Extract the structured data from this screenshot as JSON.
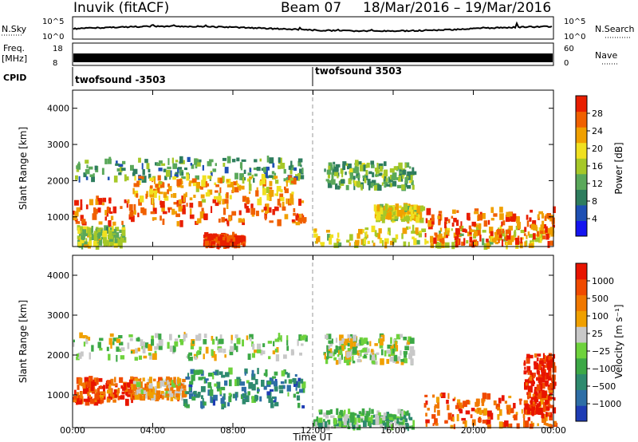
{
  "header": {
    "station": "Inuvik (fitACF)",
    "beam": "Beam 07",
    "date_range": "18/Mar/2016 – 19/Mar/2016"
  },
  "strips": {
    "nsky": {
      "label": "N.Sky",
      "ticks": [
        "10^5",
        "10^0"
      ]
    },
    "nsearch": {
      "label": "N.Search",
      "ticks": [
        "10^5",
        "10^0"
      ]
    },
    "freq": {
      "label_top": "Freq.",
      "label_bottom": "[MHz]",
      "ticks": [
        "18",
        "8"
      ]
    },
    "nave": {
      "label": "Nave",
      "ticks": [
        "60",
        "0"
      ]
    },
    "cpid": {
      "label": "CPID",
      "segments": [
        "twofsound -3503",
        "twofsound 3503"
      ]
    }
  },
  "x_axis": {
    "title": "Time UT",
    "ticks": [
      "00:00",
      "04:00",
      "08:00",
      "12:00",
      "16:00",
      "20:00",
      "00:00"
    ]
  },
  "chart_data": [
    {
      "type": "heatmap",
      "name": "power",
      "ylabel": "Slant Range [km]",
      "ylim": [
        180,
        4500
      ],
      "yticks": [
        "1000",
        "2000",
        "3000",
        "4000"
      ],
      "xlim": [
        0,
        24
      ],
      "colorbar": {
        "label": "Power [dB]",
        "ticks": [
          "4",
          "8",
          "12",
          "16",
          "20",
          "24",
          "28"
        ],
        "colors": [
          "#1414f0",
          "#1e50b4",
          "#2e7d5e",
          "#5aa85a",
          "#a6c828",
          "#f0e020",
          "#f0a000",
          "#f06000",
          "#e81e00"
        ]
      },
      "regions": [
        {
          "t0": 0.0,
          "t1": 11.6,
          "r0": 2000,
          "r1": 2600,
          "level": 0.35
        },
        {
          "t0": 0.0,
          "t1": 11.5,
          "r0": 800,
          "r1": 1500,
          "level": 0.85
        },
        {
          "t0": 0.2,
          "t1": 2.5,
          "r0": 180,
          "r1": 700,
          "level": 0.5
        },
        {
          "t0": 3.0,
          "t1": 11.0,
          "r0": 1400,
          "r1": 2100,
          "level": 0.7
        },
        {
          "t0": 6.5,
          "t1": 8.5,
          "r0": 180,
          "r1": 500,
          "level": 0.95
        },
        {
          "t0": 12.0,
          "t1": 24.0,
          "r0": 180,
          "r1": 700,
          "level": 0.6
        },
        {
          "t0": 12.5,
          "t1": 17.0,
          "r0": 1800,
          "r1": 2500,
          "level": 0.4
        },
        {
          "t0": 15.0,
          "t1": 17.5,
          "r0": 900,
          "r1": 1300,
          "level": 0.6
        },
        {
          "t0": 17.5,
          "t1": 24.0,
          "r0": 200,
          "r1": 1200,
          "level": 0.85
        }
      ]
    },
    {
      "type": "heatmap",
      "name": "velocity",
      "ylabel": "Slant Range [km]",
      "ylim": [
        180,
        4500
      ],
      "yticks": [
        "1000",
        "2000",
        "3000",
        "4000"
      ],
      "xlim": [
        0,
        24
      ],
      "colorbar": {
        "label": "Velocity [m s⁻¹]",
        "ticks": [
          "1000",
          "500",
          "100",
          "25",
          "−25",
          "−100",
          "−500",
          "−1000"
        ],
        "colors": [
          "#1e3cb4",
          "#2e6ea6",
          "#2e8a6e",
          "#3ca846",
          "#6ed23c",
          "#c8c8c8",
          "#f0a000",
          "#f07800",
          "#f04a00",
          "#e81400"
        ]
      },
      "regions": [
        {
          "t0": 0.0,
          "t1": 11.6,
          "r0": 1900,
          "r1": 2500,
          "level": 0.5
        },
        {
          "t0": 0.0,
          "t1": 3.0,
          "r0": 800,
          "r1": 1400,
          "level": 0.85
        },
        {
          "t0": 3.0,
          "t1": 5.5,
          "r0": 900,
          "r1": 1400,
          "level": 0.65
        },
        {
          "t0": 5.5,
          "t1": 11.5,
          "r0": 700,
          "r1": 1600,
          "level": 0.25
        },
        {
          "t0": 12.5,
          "t1": 17.0,
          "r0": 1800,
          "r1": 2500,
          "level": 0.5
        },
        {
          "t0": 12.0,
          "t1": 17.0,
          "r0": 180,
          "r1": 600,
          "level": 0.4
        },
        {
          "t0": 17.5,
          "t1": 24.0,
          "r0": 200,
          "r1": 1000,
          "level": 0.8
        },
        {
          "t0": 22.5,
          "t1": 24.0,
          "r0": 500,
          "r1": 2000,
          "level": 0.95
        }
      ]
    }
  ],
  "colors": {
    "frame": "#000000",
    "background": "#ffffff",
    "divider": "#999999"
  }
}
